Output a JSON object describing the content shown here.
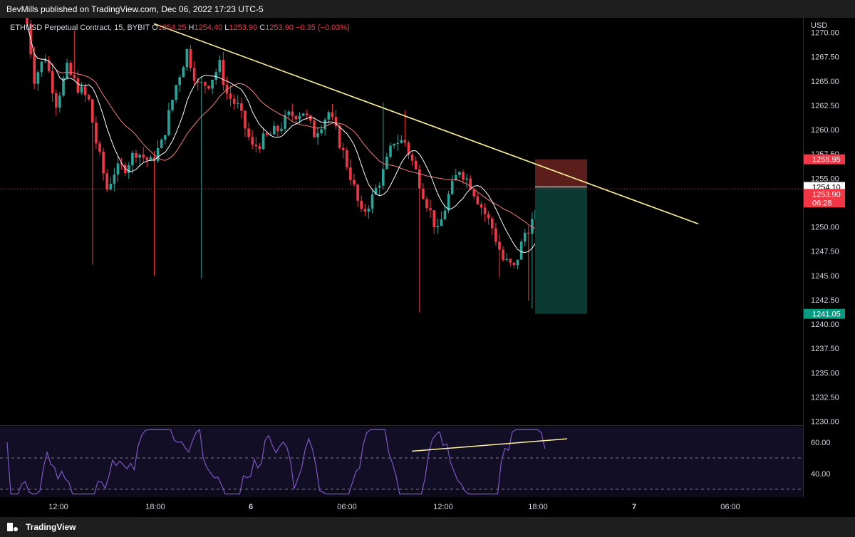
{
  "header": {
    "published": "BevMills published on TradingView.com, Dec 06, 2022 17:23 UTC-5"
  },
  "legend": {
    "symbol": "ETHUSD Perpetual Contract, 15, BYBIT",
    "o_label": "O",
    "o_value": "1254.25",
    "h_label": "H",
    "h_value": "1254.40",
    "l_label": "L",
    "l_value": "1253.90",
    "c_label": "C",
    "c_value": "1253.90",
    "change": "−0.35 (−0.03%)"
  },
  "currency": "USD",
  "footer": {
    "brand": "TradingView"
  },
  "colors": {
    "up": "#26a69a",
    "down": "#f23645",
    "trendline": "#fff59d",
    "rsi": "#7e57c2",
    "ma_fast": "#ffffff",
    "ma_slow": "#f77c80",
    "stop_zone": "#5c1e1a",
    "target_zone": "#0b3a32"
  },
  "chart_data": {
    "type": "candlestick",
    "instrument": "ETHUSD Perpetual Contract",
    "timeframe": "15",
    "exchange": "BYBIT",
    "y_ticks": [
      "1270.00",
      "1267.50",
      "1265.00",
      "1262.50",
      "1260.00",
      "1257.50",
      "1255.00",
      "1252.50",
      "1250.00",
      "1247.50",
      "1245.00",
      "1242.50",
      "1240.00",
      "1237.50",
      "1235.00",
      "1232.50",
      "1230.00"
    ],
    "ylim": [
      1228.2,
      1271.6
    ],
    "x_ticks": [
      "12:00",
      "18:00",
      "6",
      "06:00",
      "12:00",
      "18:00",
      "7",
      "06:00"
    ],
    "price_labels": {
      "stop": "1256.95",
      "entry": "1254.10",
      "last": "1253.90",
      "countdown": "06:28",
      "target": "1241.05"
    },
    "position": {
      "entry": 1254.1,
      "stop": 1256.95,
      "target": 1241.05
    },
    "trendline": {
      "start": [
        0,
        1270.9
      ],
      "end": [
        52,
        1250.3
      ]
    },
    "rsi": {
      "ticks": [
        "60.00",
        "40.00"
      ],
      "upper_band": 50,
      "lower_band": 30,
      "ylim": [
        25,
        70
      ]
    },
    "rsi_trendline": {
      "start": [
        33.6,
        54.3
      ],
      "end": [
        45.3,
        62.2
      ]
    }
  }
}
